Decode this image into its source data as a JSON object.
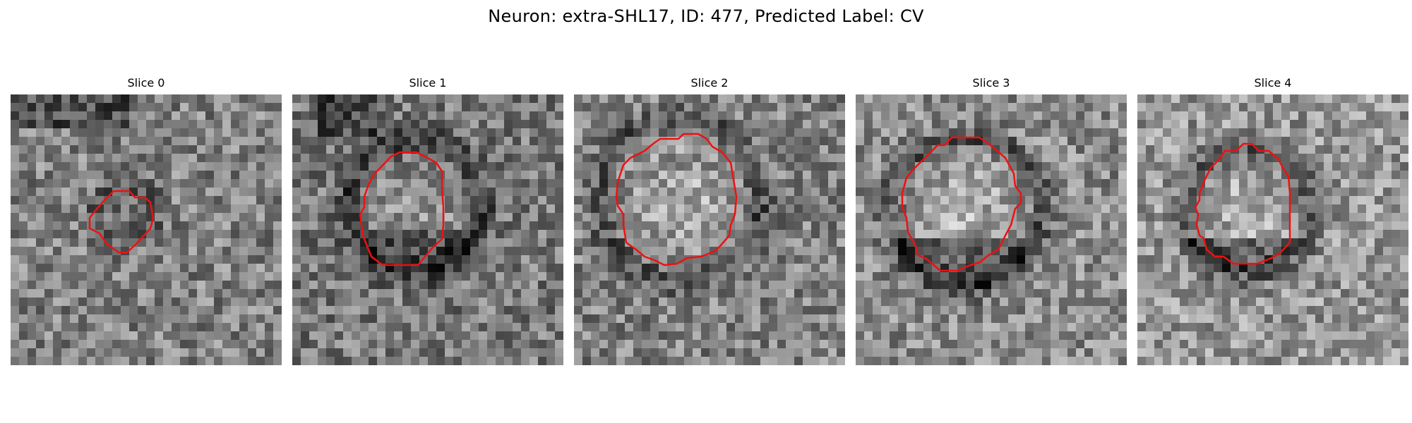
{
  "figure": {
    "suptitle": "Neuron: extra-SHL17, ID: 477, Predicted Label: CV"
  },
  "panels": [
    {
      "title": "Slice 0",
      "seed": 101
    },
    {
      "title": "Slice 1",
      "seed": 202
    },
    {
      "title": "Slice 2",
      "seed": 303
    },
    {
      "title": "Slice 3",
      "seed": 404
    },
    {
      "title": "Slice 4",
      "seed": 505
    }
  ],
  "colors": {
    "contour": "#ee1111",
    "background": "#ffffff"
  },
  "image_style": {
    "grid_resolution": 32,
    "colormap": "gray"
  }
}
